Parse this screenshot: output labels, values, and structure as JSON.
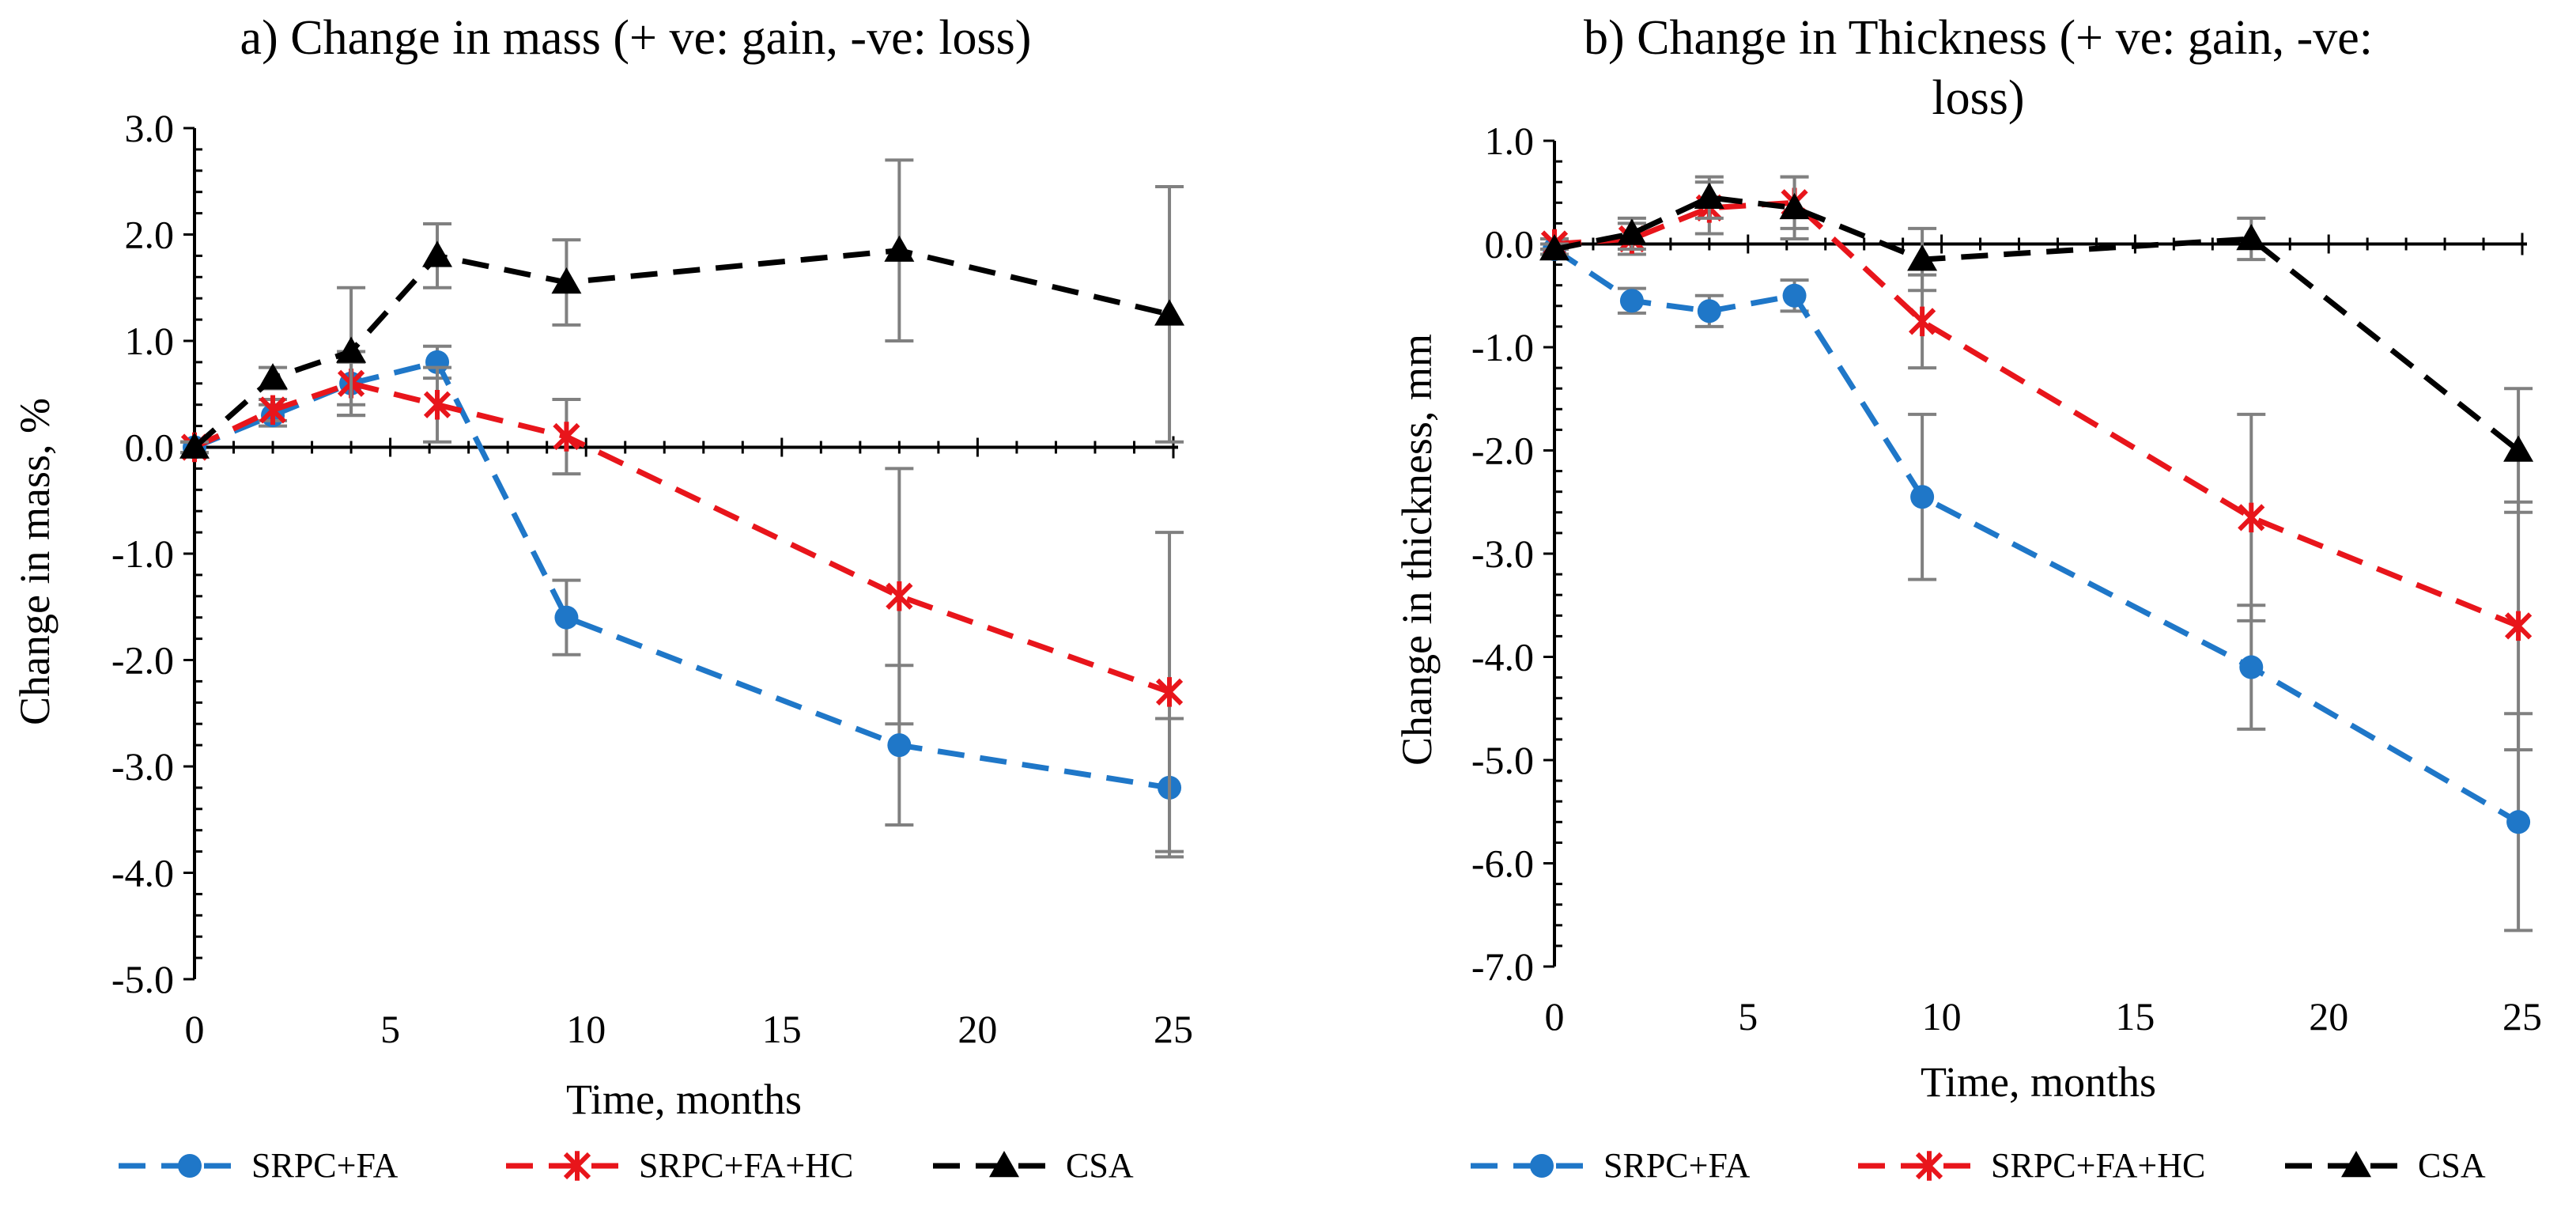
{
  "chart_data": [
    {
      "type": "line",
      "title": "a) Change in mass (+ ve: gain, -ve: loss)",
      "xlabel": "Time, months",
      "ylabel": "Change in mass, %",
      "xlim": [
        0,
        25
      ],
      "ylim": [
        -5.0,
        3.0
      ],
      "xticks": [
        0,
        5,
        10,
        15,
        20,
        25
      ],
      "xtick_labels": [
        "0",
        "5",
        "10",
        "15",
        "20",
        "25"
      ],
      "yticks": [
        3.0,
        2.0,
        1.0,
        0.0,
        -1.0,
        -2.0,
        -3.0,
        -4.0,
        -5.0
      ],
      "ytick_labels": [
        "3.0",
        "2.0",
        "1.0",
        "0.0",
        "-1.0",
        "-2.0",
        "-3.0",
        "-4.0",
        "-5.0"
      ],
      "grid": false,
      "legend": "bottom",
      "series": [
        {
          "name": "SRPC+FA",
          "color": "#1f77c8",
          "marker": "circle",
          "x": [
            0,
            2,
            4,
            6.2,
            9.5,
            18,
            24.9
          ],
          "y": [
            0,
            0.3,
            0.6,
            0.8,
            -1.6,
            -2.8,
            -3.2
          ],
          "err": [
            0.05,
            0.1,
            0.3,
            0.15,
            0.35,
            0.75,
            0.65
          ]
        },
        {
          "name": "SRPC+FA+HC",
          "color": "#e8151b",
          "marker": "x-star",
          "x": [
            0,
            2,
            4,
            6.2,
            9.5,
            18,
            24.9
          ],
          "y": [
            0,
            0.35,
            0.6,
            0.4,
            0.1,
            -1.4,
            -2.3
          ],
          "err": [
            0.05,
            0.1,
            0.2,
            0.35,
            0.35,
            1.2,
            1.5
          ]
        },
        {
          "name": "CSA",
          "color": "#000000",
          "marker": "triangle",
          "x": [
            0,
            2,
            4,
            6.2,
            9.5,
            18,
            24.9
          ],
          "y": [
            0,
            0.65,
            0.9,
            1.8,
            1.55,
            1.85,
            1.25
          ],
          "err": [
            0.05,
            0.1,
            0.6,
            0.3,
            0.4,
            0.85,
            1.2
          ]
        }
      ]
    },
    {
      "type": "line",
      "title": "b) Change in Thickness (+ ve: gain, -ve: loss)",
      "title_lines": [
        "b) Change in Thickness (+ ve: gain, -ve:",
        "loss)"
      ],
      "xlabel": "Time, months",
      "ylabel": "Change in thickness, mm",
      "xlim": [
        0,
        25
      ],
      "ylim": [
        -7.0,
        1.0
      ],
      "xticks": [
        0,
        5,
        10,
        15,
        20,
        25
      ],
      "xtick_labels": [
        "0",
        "5",
        "10",
        "15",
        "20",
        "25"
      ],
      "yticks": [
        1.0,
        0.0,
        -1.0,
        -2.0,
        -3.0,
        -4.0,
        -5.0,
        -6.0,
        -7.0
      ],
      "ytick_labels": [
        "1.0",
        "0.0",
        "-1.0",
        "-2.0",
        "-3.0",
        "-4.0",
        "-5.0",
        "-6.0",
        "-7.0"
      ],
      "grid": false,
      "legend": "bottom",
      "series": [
        {
          "name": "SRPC+FA",
          "color": "#1f77c8",
          "marker": "circle",
          "x": [
            0,
            2,
            4,
            6.2,
            9.5,
            18,
            24.9
          ],
          "y": [
            -0.05,
            -0.55,
            -0.65,
            -0.5,
            -2.45,
            -4.1,
            -5.6
          ],
          "err": [
            0.05,
            0.12,
            0.15,
            0.15,
            0.8,
            0.6,
            1.05
          ]
        },
        {
          "name": "SRPC+FA+HC",
          "color": "#e8151b",
          "marker": "x-star",
          "x": [
            0,
            2,
            4,
            6.2,
            9.5,
            18,
            24.9
          ],
          "y": [
            0,
            0.05,
            0.35,
            0.4,
            -0.75,
            -2.65,
            -3.7
          ],
          "err": [
            0.05,
            0.15,
            0.25,
            0.25,
            0.45,
            1.0,
            1.2
          ]
        },
        {
          "name": "CSA",
          "color": "#000000",
          "marker": "triangle",
          "x": [
            0,
            2,
            4,
            6.2,
            9.5,
            18,
            24.9
          ],
          "y": [
            -0.05,
            0.1,
            0.45,
            0.35,
            -0.15,
            0.05,
            -2.0
          ],
          "err": [
            0.05,
            0.15,
            0.2,
            0.3,
            0.3,
            0.2,
            0.6
          ]
        }
      ]
    }
  ]
}
